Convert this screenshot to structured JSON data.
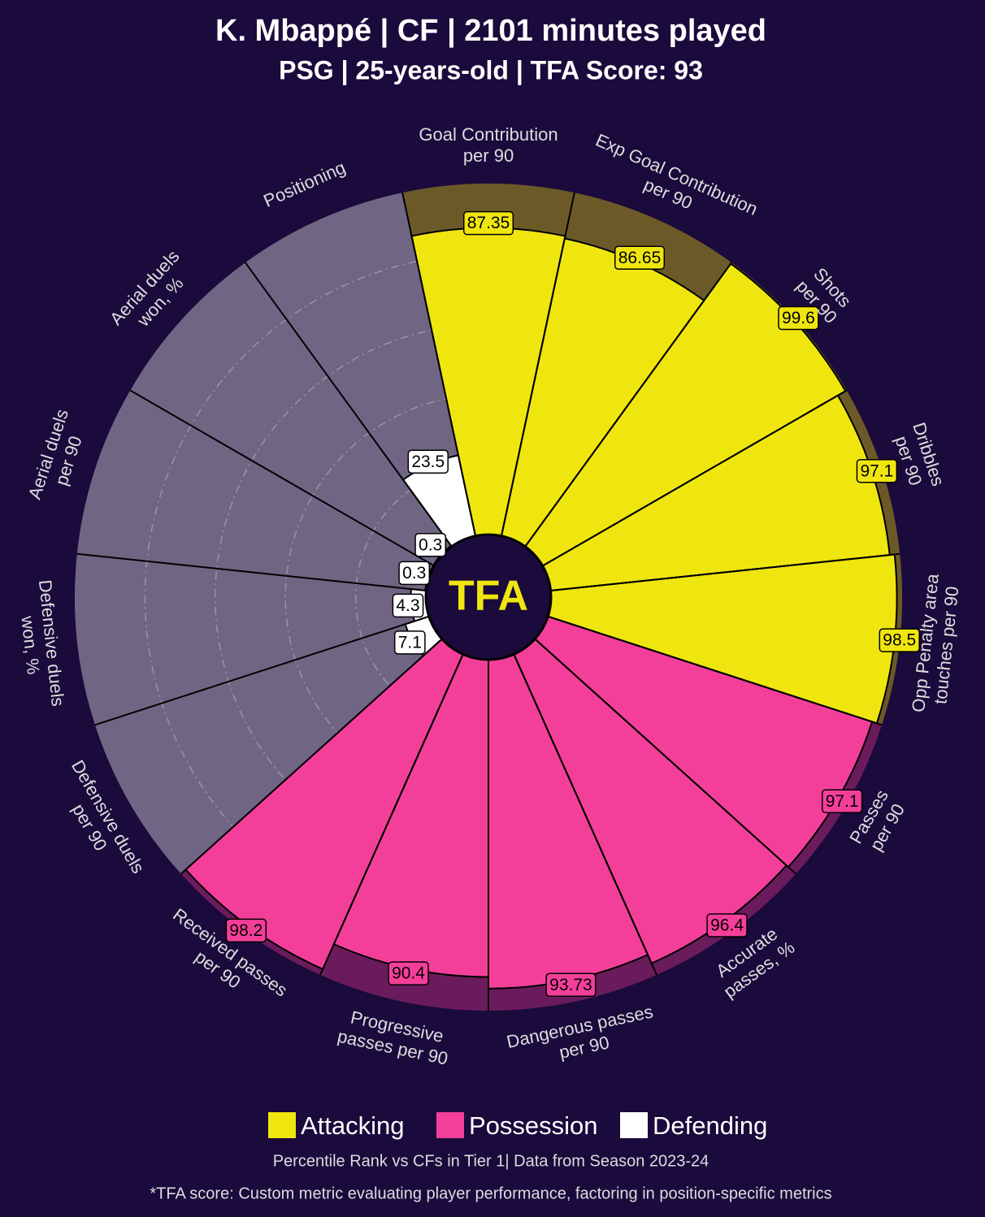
{
  "chart_data": {
    "type": "pizza",
    "title": "K. Mbappé | CF | 2101 minutes played",
    "subtitle": "PSG | 25-years-old | TFA Score: 93",
    "logo_text": "TFA",
    "categories": [
      [
        "Goal Contribution",
        "per 90"
      ],
      [
        "Exp Goal Contribution",
        "per 90"
      ],
      [
        "Shots",
        "per 90"
      ],
      [
        "Dribbles",
        "per 90"
      ],
      [
        "Opp Penalty area",
        "touches per 90"
      ],
      [
        "Passes",
        "per 90"
      ],
      [
        "Accurate",
        "passes, %"
      ],
      [
        "Dangerous passes",
        "per 90"
      ],
      [
        "Progressive",
        "passes per 90"
      ],
      [
        "Received passes",
        "per 90"
      ],
      [
        "Defensive duels",
        "per 90"
      ],
      [
        "Defensive duels",
        "won, %"
      ],
      [
        "Aerial duels",
        "per 90"
      ],
      [
        "Aerial duels",
        "won, %"
      ],
      [
        "Positioning"
      ]
    ],
    "series": [
      {
        "name": "Attacking",
        "color": "#f0e60f",
        "band_color": "#6b5a28",
        "values": [
          87.35,
          86.65,
          99.6,
          97.1,
          98.5,
          null,
          null,
          null,
          null,
          null,
          null,
          null,
          null,
          null,
          null
        ]
      },
      {
        "name": "Possession",
        "color": "#f43f9a",
        "band_color": "#6a1b5c",
        "values": [
          null,
          null,
          null,
          null,
          null,
          97.1,
          96.4,
          93.73,
          90.4,
          98.2,
          null,
          null,
          null,
          null,
          null
        ]
      },
      {
        "name": "Defending",
        "color": "#ffffff",
        "band_color": "#706683",
        "values": [
          null,
          null,
          null,
          null,
          null,
          null,
          null,
          null,
          null,
          null,
          7.1,
          4.3,
          0.3,
          0.3,
          23.5
        ]
      }
    ],
    "rlim": [
      0,
      100
    ],
    "rticks": [
      20,
      40,
      60,
      80
    ],
    "footnotes": [
      "Percentile Rank vs CFs in Tier 1| Data from Season 2023-24",
      "*TFA score: Custom metric evaluating player performance, factoring in position-specific metrics"
    ]
  }
}
